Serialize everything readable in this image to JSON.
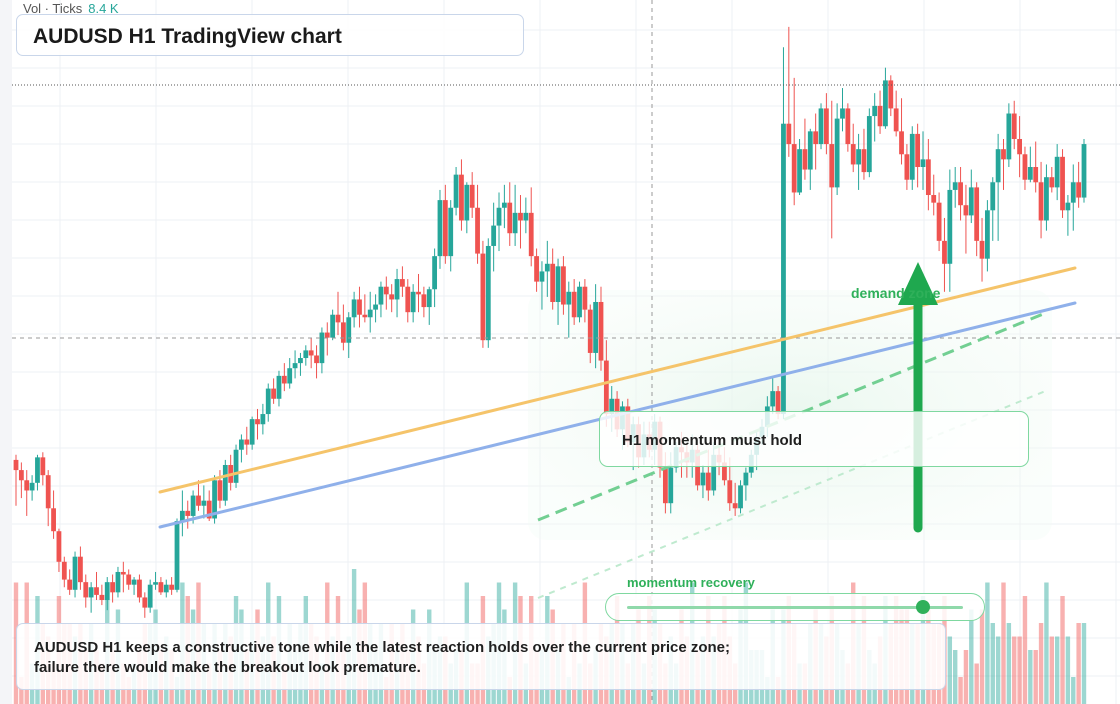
{
  "header": {
    "vol_label": "Vol · Ticks",
    "vol_value": "8.4 K"
  },
  "title": "AUDUSD H1 TradingView chart",
  "annotations": {
    "demand_zone": "demand zone",
    "momentum_note": "H1 momentum must hold",
    "momentum_label": "momentum recovery",
    "momentum_level": 0.88
  },
  "summary": "AUDUSD H1 keeps a constructive tone while the latest reaction holds over the current price zone; failure there would make the breakout look premature.",
  "colors": {
    "up": "#26a69a",
    "down": "#ef5350",
    "trend_orange": "#f5c46a",
    "trend_blue": "#8fb0ea",
    "signal_green": "#2fb05a",
    "grid": "#eef0f4"
  },
  "chart_data": {
    "type": "candlestick",
    "timeframe": "H1",
    "symbol": "AUDUSD",
    "ohlc": [
      [
        56,
        58,
        38,
        52
      ],
      [
        52,
        55,
        41,
        48
      ],
      [
        48,
        52,
        34,
        44
      ],
      [
        44,
        50,
        40,
        47
      ],
      [
        47,
        58,
        44,
        57
      ],
      [
        57,
        59,
        46,
        50
      ],
      [
        50,
        52,
        30,
        37
      ],
      [
        37,
        44,
        25,
        28
      ],
      [
        28,
        29,
        12,
        16
      ],
      [
        16,
        18,
        6,
        9
      ],
      [
        9,
        13,
        3,
        5
      ],
      [
        5,
        20,
        2,
        18
      ],
      [
        18,
        22,
        5,
        8
      ],
      [
        8,
        11,
        -2,
        2
      ],
      [
        2,
        8,
        -4,
        6
      ],
      [
        6,
        12,
        1,
        3
      ],
      [
        3,
        7,
        -1,
        1
      ],
      [
        1,
        10,
        -3,
        8
      ],
      [
        8,
        11,
        0,
        4
      ],
      [
        4,
        14,
        2,
        12
      ],
      [
        12,
        16,
        4,
        11
      ],
      [
        11,
        13,
        5,
        7
      ],
      [
        7,
        10,
        3,
        9
      ],
      [
        9,
        11,
        0,
        2
      ],
      [
        2,
        4,
        -6,
        -2
      ],
      [
        -2,
        9,
        -4,
        7
      ],
      [
        7,
        12,
        5,
        8
      ],
      [
        8,
        10,
        3,
        4
      ],
      [
        4,
        9,
        2,
        7
      ],
      [
        7,
        10,
        3,
        5
      ],
      [
        5,
        33,
        4,
        32
      ],
      [
        32,
        44,
        26,
        36
      ],
      [
        36,
        40,
        29,
        34
      ],
      [
        34,
        44,
        31,
        42
      ],
      [
        42,
        48,
        36,
        38
      ],
      [
        38,
        46,
        33,
        40
      ],
      [
        40,
        44,
        32,
        33
      ],
      [
        33,
        50,
        31,
        48
      ],
      [
        48,
        52,
        37,
        40
      ],
      [
        40,
        56,
        38,
        54
      ],
      [
        54,
        58,
        44,
        47
      ],
      [
        47,
        62,
        45,
        60
      ],
      [
        60,
        66,
        55,
        64
      ],
      [
        64,
        69,
        58,
        62
      ],
      [
        62,
        73,
        60,
        72
      ],
      [
        72,
        76,
        64,
        70
      ],
      [
        70,
        78,
        66,
        74
      ],
      [
        74,
        86,
        71,
        84
      ],
      [
        84,
        88,
        78,
        80
      ],
      [
        80,
        91,
        77,
        89
      ],
      [
        89,
        94,
        83,
        86
      ],
      [
        86,
        96,
        84,
        92
      ],
      [
        92,
        99,
        88,
        94
      ],
      [
        94,
        98,
        89,
        96
      ],
      [
        96,
        101,
        93,
        99
      ],
      [
        99,
        104,
        92,
        97
      ],
      [
        97,
        101,
        88,
        94
      ],
      [
        94,
        108,
        90,
        106
      ],
      [
        106,
        110,
        97,
        104
      ],
      [
        104,
        115,
        103,
        113
      ],
      [
        113,
        122,
        105,
        110
      ],
      [
        110,
        117,
        99,
        102
      ],
      [
        102,
        114,
        96,
        112
      ],
      [
        112,
        122,
        108,
        119
      ],
      [
        119,
        124,
        108,
        113
      ],
      [
        113,
        121,
        110,
        112
      ],
      [
        112,
        122,
        106,
        115
      ],
      [
        115,
        121,
        110,
        117
      ],
      [
        117,
        126,
        112,
        124
      ],
      [
        124,
        128,
        115,
        121
      ],
      [
        121,
        125,
        114,
        119
      ],
      [
        119,
        131,
        112,
        127
      ],
      [
        127,
        132,
        120,
        124
      ],
      [
        124,
        127,
        110,
        114
      ],
      [
        114,
        125,
        110,
        122
      ],
      [
        122,
        129,
        114,
        121
      ],
      [
        121,
        124,
        112,
        116
      ],
      [
        116,
        124,
        109,
        123
      ],
      [
        123,
        139,
        116,
        136
      ],
      [
        136,
        162,
        131,
        158
      ],
      [
        158,
        164,
        133,
        136
      ],
      [
        136,
        158,
        130,
        155
      ],
      [
        155,
        171,
        152,
        168
      ],
      [
        168,
        174,
        146,
        150
      ],
      [
        150,
        165,
        145,
        164
      ],
      [
        164,
        169,
        151,
        155
      ],
      [
        155,
        164,
        133,
        137
      ],
      [
        137,
        142,
        100,
        103
      ],
      [
        103,
        143,
        100,
        140
      ],
      [
        140,
        157,
        130,
        148
      ],
      [
        148,
        161,
        138,
        155
      ],
      [
        155,
        164,
        147,
        157
      ],
      [
        157,
        165,
        140,
        145
      ],
      [
        145,
        164,
        140,
        153
      ],
      [
        153,
        160,
        139,
        150
      ],
      [
        150,
        159,
        145,
        153
      ],
      [
        153,
        163,
        132,
        136
      ],
      [
        136,
        139,
        122,
        126
      ],
      [
        126,
        134,
        115,
        130
      ],
      [
        130,
        142,
        120,
        133
      ],
      [
        133,
        139,
        115,
        118
      ],
      [
        118,
        135,
        109,
        132
      ],
      [
        132,
        136,
        113,
        117
      ],
      [
        117,
        126,
        104,
        122
      ],
      [
        122,
        127,
        109,
        112
      ],
      [
        112,
        126,
        110,
        124
      ],
      [
        124,
        127,
        110,
        115
      ],
      [
        115,
        117,
        94,
        98
      ],
      [
        98,
        125,
        92,
        118
      ],
      [
        118,
        124,
        91,
        95
      ],
      [
        95,
        103,
        69,
        74
      ],
      [
        74,
        85,
        67,
        80
      ],
      [
        80,
        83,
        65,
        68
      ],
      [
        68,
        79,
        60,
        77
      ],
      [
        77,
        80,
        61,
        63
      ],
      [
        63,
        73,
        52,
        70
      ],
      [
        70,
        73,
        53,
        57
      ],
      [
        57,
        71,
        54,
        66
      ],
      [
        66,
        71,
        57,
        60
      ],
      [
        60,
        74,
        54,
        71
      ],
      [
        71,
        73,
        49,
        53
      ],
      [
        53,
        59,
        35,
        39
      ],
      [
        39,
        59,
        35,
        53
      ],
      [
        53,
        63,
        51,
        61
      ],
      [
        61,
        67,
        49,
        59
      ],
      [
        59,
        62,
        49,
        55
      ],
      [
        55,
        66,
        49,
        60
      ],
      [
        60,
        62,
        44,
        46
      ],
      [
        46,
        54,
        41,
        51
      ],
      [
        51,
        60,
        40,
        44
      ],
      [
        44,
        63,
        42,
        58
      ],
      [
        58,
        65,
        50,
        55
      ],
      [
        55,
        61,
        46,
        48
      ],
      [
        48,
        57,
        36,
        39
      ],
      [
        39,
        47,
        34,
        37
      ],
      [
        37,
        48,
        35,
        46
      ],
      [
        46,
        53,
        40,
        51
      ],
      [
        51,
        60,
        49,
        58
      ],
      [
        58,
        67,
        52,
        65
      ],
      [
        65,
        72,
        62,
        69
      ],
      [
        69,
        81,
        65,
        77
      ],
      [
        77,
        88,
        74,
        83
      ],
      [
        83,
        85,
        72,
        74
      ],
      [
        74,
        218,
        72,
        188
      ],
      [
        188,
        226,
        175,
        180
      ],
      [
        180,
        206,
        156,
        161
      ],
      [
        161,
        182,
        160,
        178
      ],
      [
        178,
        190,
        166,
        170
      ],
      [
        170,
        186,
        162,
        185
      ],
      [
        185,
        192,
        170,
        180
      ],
      [
        180,
        196,
        178,
        194
      ],
      [
        194,
        200,
        176,
        180
      ],
      [
        180,
        197,
        143,
        163
      ],
      [
        163,
        196,
        160,
        190
      ],
      [
        190,
        202,
        185,
        194
      ],
      [
        194,
        196,
        177,
        180
      ],
      [
        180,
        188,
        169,
        172
      ],
      [
        172,
        184,
        162,
        178
      ],
      [
        178,
        186,
        166,
        169
      ],
      [
        169,
        194,
        167,
        191
      ],
      [
        191,
        200,
        181,
        195
      ],
      [
        195,
        201,
        184,
        187
      ],
      [
        187,
        210,
        186,
        205
      ],
      [
        205,
        207,
        191,
        194
      ],
      [
        194,
        201,
        183,
        185
      ],
      [
        185,
        198,
        172,
        176
      ],
      [
        176,
        180,
        162,
        166
      ],
      [
        166,
        187,
        162,
        184
      ],
      [
        184,
        188,
        163,
        171
      ],
      [
        171,
        185,
        162,
        174
      ],
      [
        174,
        182,
        154,
        160
      ],
      [
        160,
        168,
        152,
        157
      ],
      [
        157,
        161,
        138,
        142
      ],
      [
        142,
        151,
        122,
        133
      ],
      [
        133,
        170,
        122,
        162
      ],
      [
        162,
        171,
        155,
        165
      ],
      [
        165,
        171,
        150,
        156
      ],
      [
        156,
        164,
        137,
        152
      ],
      [
        152,
        170,
        149,
        163
      ],
      [
        163,
        165,
        136,
        142
      ],
      [
        142,
        151,
        126,
        135
      ],
      [
        135,
        158,
        130,
        154
      ],
      [
        154,
        167,
        142,
        165
      ],
      [
        165,
        184,
        142,
        178
      ],
      [
        178,
        182,
        162,
        174
      ],
      [
        174,
        196,
        171,
        192
      ],
      [
        192,
        197,
        178,
        182
      ],
      [
        182,
        191,
        167,
        176
      ],
      [
        176,
        179,
        162,
        166
      ],
      [
        166,
        179,
        165,
        171
      ],
      [
        171,
        181,
        161,
        165
      ],
      [
        165,
        173,
        143,
        150
      ],
      [
        150,
        172,
        146,
        167
      ],
      [
        167,
        171,
        161,
        163
      ],
      [
        163,
        180,
        158,
        175
      ],
      [
        175,
        178,
        151,
        154
      ],
      [
        154,
        160,
        144,
        157
      ],
      [
        157,
        172,
        146,
        165
      ],
      [
        165,
        173,
        155,
        159
      ],
      [
        159,
        182,
        157,
        180
      ]
    ],
    "price_range": [
      -10,
      235
    ],
    "grid": true,
    "volume": [
      9,
      2,
      9,
      3,
      8,
      6,
      5,
      3,
      8,
      6,
      6,
      5,
      6,
      4,
      6,
      4,
      3,
      8,
      4,
      7,
      3,
      2,
      3,
      4,
      6,
      6,
      7,
      4,
      5,
      4,
      2,
      9,
      8,
      7,
      9,
      6,
      3,
      6,
      4,
      6,
      5,
      8,
      7,
      4,
      6,
      7,
      5,
      9,
      5,
      8,
      3,
      6,
      4,
      6,
      8,
      6,
      5,
      3,
      9,
      5,
      8,
      4,
      5,
      10,
      7,
      9,
      6,
      4,
      6,
      2,
      6,
      4,
      6,
      4,
      7,
      5,
      3,
      7,
      4,
      5,
      5,
      3,
      4,
      4,
      9,
      3,
      3,
      8,
      5,
      6,
      9,
      7,
      2,
      9,
      8,
      3,
      8,
      4,
      4,
      8,
      7,
      4,
      6,
      2,
      6,
      3,
      9,
      3,
      4,
      6,
      5,
      6,
      8,
      6,
      3,
      6,
      7,
      3,
      8,
      7,
      6,
      3,
      5,
      3,
      7,
      5,
      9,
      4,
      5,
      8,
      5,
      6,
      8,
      5,
      3,
      7,
      9,
      4,
      4,
      4,
      2,
      7,
      2,
      7,
      8,
      6,
      3,
      3,
      6,
      7,
      6,
      5,
      8,
      6,
      4,
      3,
      9,
      6,
      8,
      4,
      3,
      5,
      8,
      6,
      8,
      7,
      7,
      6,
      6,
      8,
      7,
      6,
      6,
      8,
      5,
      4,
      2,
      4,
      7,
      3,
      7,
      9,
      6,
      5,
      9,
      6,
      5,
      5,
      8,
      4,
      4,
      6,
      9,
      5,
      5,
      8,
      5,
      2,
      6,
      6
    ]
  }
}
